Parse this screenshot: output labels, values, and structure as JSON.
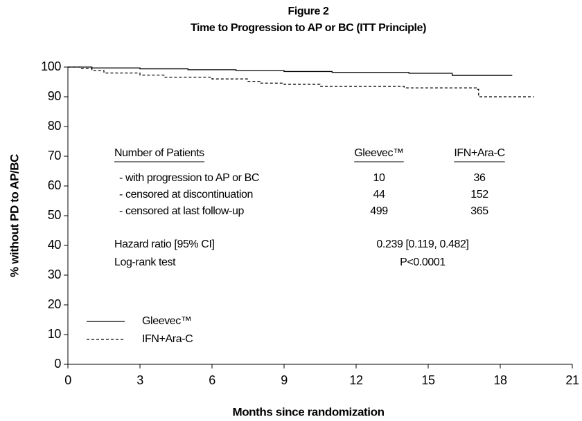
{
  "chart_data": {
    "type": "step",
    "title": "Figure 2",
    "subtitle": "Time to Progression to AP or BC (ITT Principle)",
    "x_label": "Months since randomization",
    "y_label": "% without PD to AP/BC",
    "xlim": [
      0,
      21
    ],
    "xticks": [
      0,
      3,
      6,
      9,
      12,
      15,
      18,
      21
    ],
    "ylim": [
      0,
      100
    ],
    "yticks": [
      0,
      10,
      20,
      30,
      40,
      50,
      60,
      70,
      80,
      90,
      100
    ],
    "series": [
      {
        "name": "Gleevec™",
        "color": "#000000",
        "dashed": false,
        "x": [
          0,
          1,
          3,
          5,
          7,
          9,
          11,
          14.2,
          16,
          18.5
        ],
        "values": [
          100,
          99.7,
          99.4,
          99.1,
          98.8,
          98.5,
          98.2,
          97.9,
          97.2,
          97.2
        ]
      },
      {
        "name": "IFN+Ara-C",
        "color": "#000000",
        "dashed": true,
        "x": [
          0,
          0.5,
          1,
          1.5,
          3,
          4,
          6,
          7.5,
          8,
          9,
          10.5,
          14,
          17,
          17.1,
          19.4
        ],
        "values": [
          100,
          99.5,
          98.8,
          98,
          97.3,
          96.6,
          96,
          95.2,
          94.6,
          94.2,
          93.5,
          93,
          92.5,
          90,
          90
        ]
      }
    ],
    "legend": "lower left",
    "table": {
      "header": [
        "Number of Patients",
        "Gleevec™",
        "IFN+Ara-C"
      ],
      "rows": [
        [
          "- with progression to AP or BC",
          10,
          36
        ],
        [
          "- censored at discontinuation",
          44,
          152
        ],
        [
          "- censored at last follow-up",
          499,
          365
        ]
      ]
    },
    "annotations": [
      "Hazard ratio [95% CI]",
      "0.239 [0.119, 0.482]",
      "Log-rank test",
      "P<0.0001"
    ]
  }
}
